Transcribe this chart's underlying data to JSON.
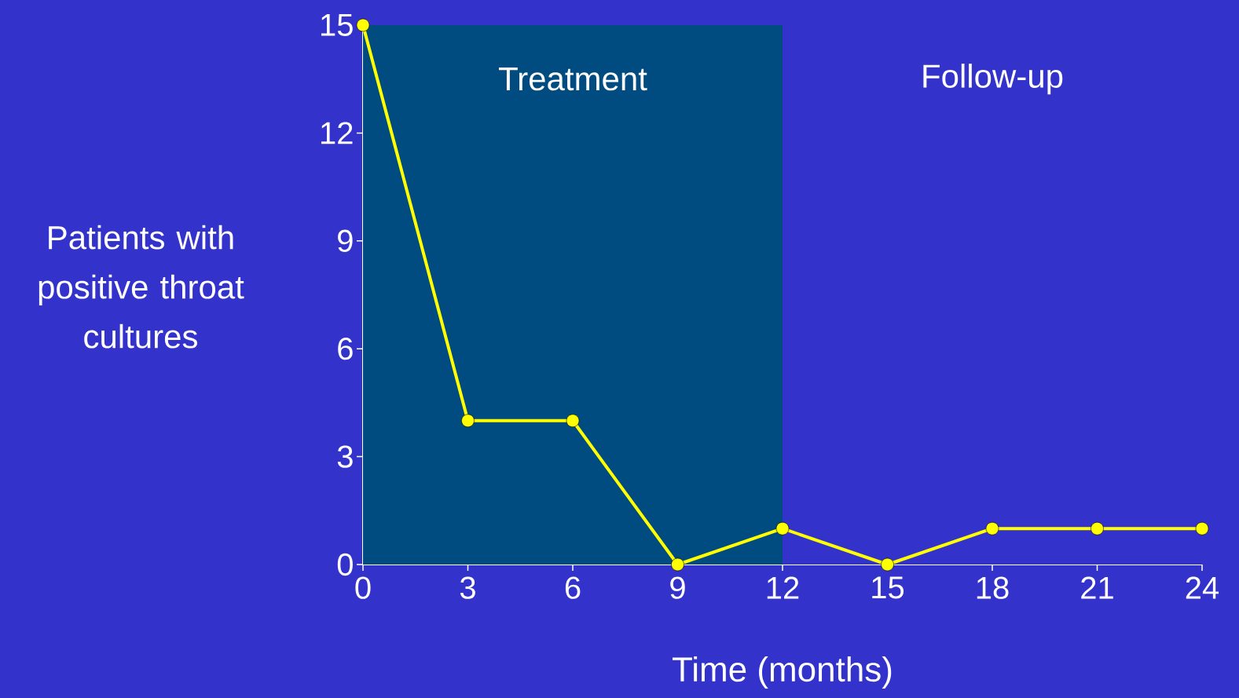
{
  "chart_data": {
    "type": "line",
    "xlabel": "Time (months)",
    "ylabel": "Patients with positive throat cultures",
    "x": [
      0,
      3,
      6,
      9,
      12,
      15,
      18,
      21,
      24
    ],
    "series": [
      {
        "color": "#ffff00",
        "values": [
          15,
          4,
          4,
          0,
          1,
          0,
          1,
          1,
          1
        ]
      }
    ],
    "xlim": [
      0,
      24
    ],
    "ylim": [
      0,
      15
    ],
    "xticks": [
      0,
      3,
      6,
      9,
      12,
      15,
      18,
      21,
      24
    ],
    "yticks": [
      0,
      3,
      6,
      9,
      12,
      15
    ],
    "bands": [
      {
        "axis": "x",
        "from": 0,
        "to": 12,
        "label": "Treatment",
        "color": "#004c80"
      },
      {
        "axis": "x",
        "from": 12,
        "to": 24,
        "label": "Follow-up",
        "color": "#3333cc"
      }
    ],
    "marker": "circle",
    "line_style": "solid",
    "grid": false
  }
}
